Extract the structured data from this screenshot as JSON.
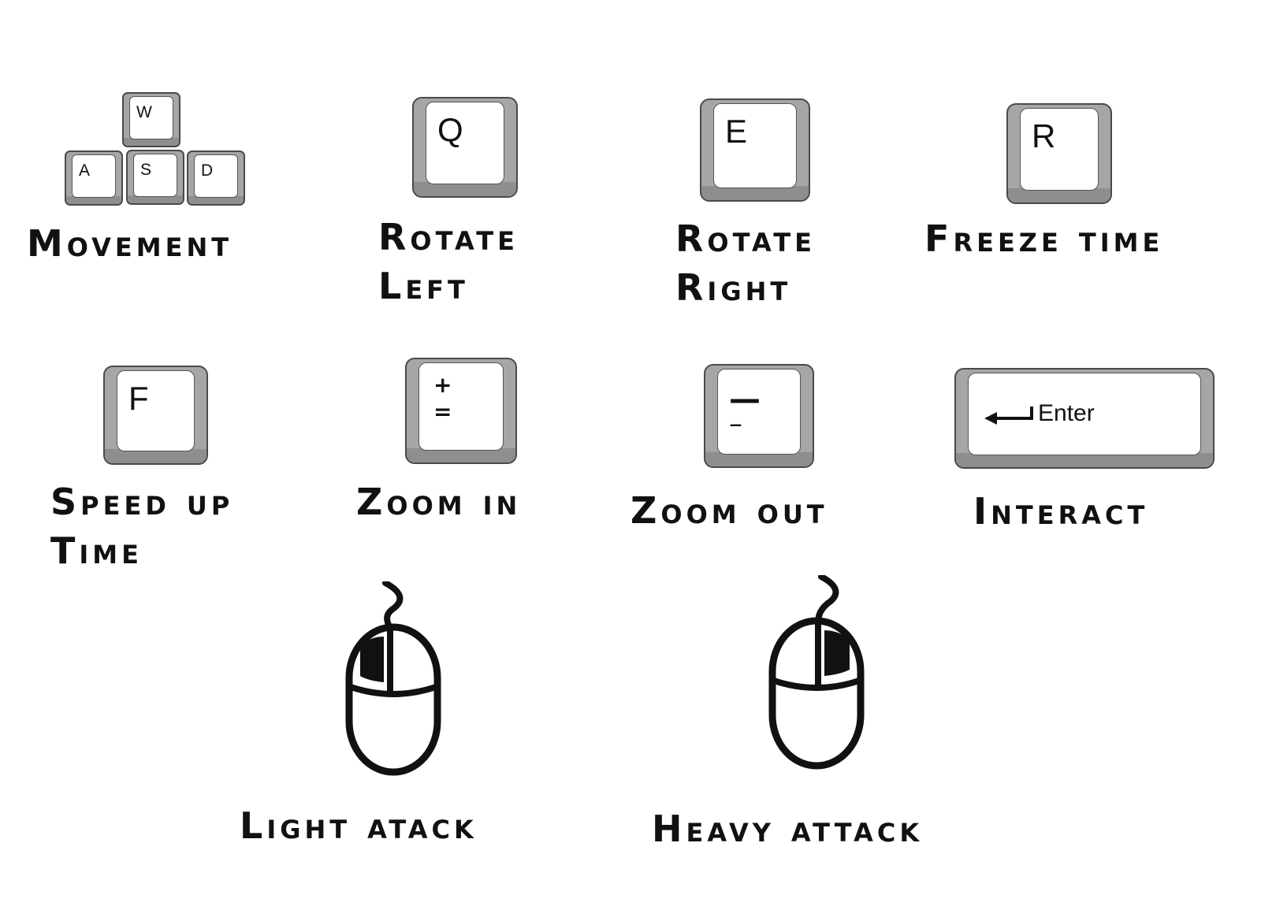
{
  "controls": [
    {
      "id": "movement",
      "keys": [
        "W",
        "A",
        "S",
        "D"
      ],
      "label_lines": [
        "Movement"
      ]
    },
    {
      "id": "rotate-left",
      "key": "Q",
      "label_lines": [
        "Rotate",
        "Left"
      ]
    },
    {
      "id": "rotate-right",
      "key": "E",
      "label_lines": [
        "Rotate",
        "Right"
      ]
    },
    {
      "id": "freeze-time",
      "key": "R",
      "label_lines": [
        "Freeze Time"
      ]
    },
    {
      "id": "speed-up-time",
      "key": "F",
      "label_lines": [
        "Speed up",
        "Time"
      ]
    },
    {
      "id": "zoom-in",
      "key_symbols": [
        "+",
        "="
      ],
      "label_lines": [
        "Zoom In"
      ]
    },
    {
      "id": "zoom-out",
      "key_symbols": [
        "—",
        "–"
      ],
      "label_lines": [
        "Zoom Out"
      ]
    },
    {
      "id": "interact",
      "key": "Enter",
      "label_lines": [
        "Interact"
      ]
    },
    {
      "id": "light-attack",
      "mouse_button": "left",
      "label_lines": [
        "Light Atack"
      ]
    },
    {
      "id": "heavy-attack",
      "mouse_button": "right",
      "label_lines": [
        "Heavy Attack"
      ]
    }
  ],
  "icons": {
    "enter_arrow": "return-arrow-icon",
    "mouse": "computer-mouse-icon"
  },
  "colors": {
    "keycap_gray": "#a6a6a6",
    "key_face": "#ffffff",
    "text": "#111111"
  }
}
